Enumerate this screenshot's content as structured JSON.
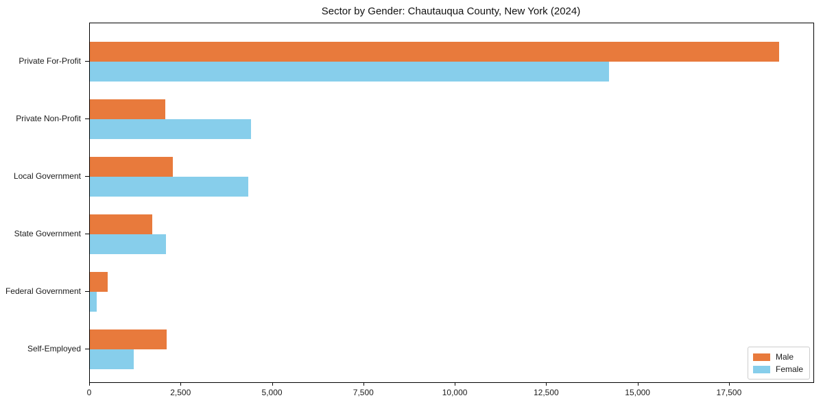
{
  "chart_data": {
    "type": "bar",
    "orientation": "horizontal",
    "title": "Sector by Gender: Chautauqua County, New York (2024)",
    "xlabel": "",
    "ylabel": "",
    "categories": [
      "Private For-Profit",
      "Private Non-Profit",
      "Local Government",
      "State Government",
      "Federal Government",
      "Self-Employed"
    ],
    "series": [
      {
        "name": "Male",
        "color": "#e87a3c",
        "values": [
          18850,
          2060,
          2270,
          1700,
          480,
          2110
        ]
      },
      {
        "name": "Female",
        "color": "#87ceeb",
        "values": [
          14200,
          4410,
          4330,
          2080,
          180,
          1200
        ]
      }
    ],
    "xlim": [
      0,
      19790
    ],
    "xticks": [
      0,
      2500,
      5000,
      7500,
      10000,
      12500,
      15000,
      17500
    ],
    "xtick_labels": [
      "0",
      "2,500",
      "5,000",
      "7,500",
      "10,000",
      "12,500",
      "15,000",
      "17,500"
    ],
    "grid": false,
    "legend_position": "lower right",
    "plot_background": "#ffffff",
    "spine_color": "#000000"
  }
}
